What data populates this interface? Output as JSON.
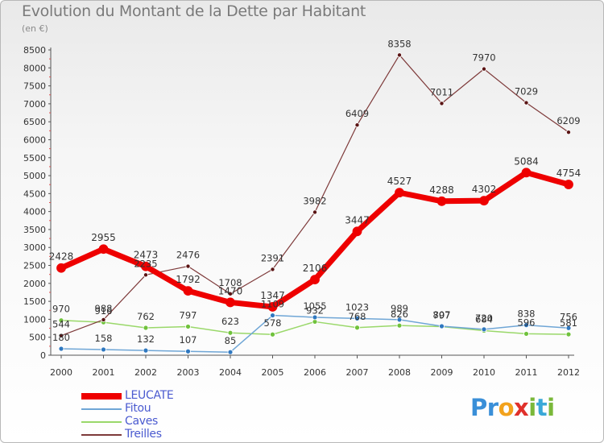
{
  "title": "Evolution du Montant de la Dette par Habitant",
  "subtitle": "(en €)",
  "logo": {
    "letters": [
      "P",
      "r",
      "o",
      "x",
      "i",
      "t",
      "i"
    ],
    "colors": [
      "#3a8fd8",
      "#3a8fd8",
      "#f2a21c",
      "#e0302b",
      "#7ab83a",
      "#3aa8d8",
      "#7ab83a"
    ]
  },
  "chart_data": {
    "type": "line",
    "x": [
      "2000",
      "2001",
      "2002",
      "2003",
      "2004",
      "2005",
      "2006",
      "2007",
      "2008",
      "2009",
      "2010",
      "2011",
      "2012"
    ],
    "ylim": [
      0,
      8500
    ],
    "yticks": [
      0,
      500,
      1000,
      1500,
      2000,
      2500,
      3000,
      3500,
      4000,
      4500,
      5000,
      5500,
      6000,
      6500,
      7000,
      7500,
      8000,
      8500
    ],
    "grid": false,
    "legend_position": "bottom-left",
    "series": [
      {
        "name": "LEUCATE",
        "color": "#ee0000",
        "values": [
          2428,
          2955,
          2473,
          1792,
          1470,
          1347,
          2106,
          3447,
          4527,
          4288,
          4302,
          5084,
          4754
        ],
        "labels": [
          "2428",
          "2955",
          "2473",
          "1792",
          "1470",
          "1347",
          "2106",
          "3447",
          "4527",
          "4288",
          "4302",
          "5084",
          "4754"
        ]
      },
      {
        "name": "Fitou",
        "color": "#6fa6d6",
        "values": [
          180,
          158,
          132,
          107,
          85,
          1109,
          1055,
          1023,
          989,
          807,
          720,
          838,
          756
        ],
        "labels": [
          "180",
          "158",
          "132",
          "107",
          "85",
          "1109",
          "1055",
          "1023",
          "989",
          "807",
          "720",
          "838",
          "756"
        ]
      },
      {
        "name": "Caves",
        "color": "#9ad86a",
        "values": [
          970,
          916,
          762,
          797,
          623,
          578,
          932,
          768,
          826,
          797,
          684,
          596,
          581
        ],
        "labels": [
          "970",
          "916",
          "762",
          "797",
          "623",
          "578",
          "932",
          "768",
          "826",
          "797",
          "684",
          "596",
          "581"
        ]
      },
      {
        "name": "Treilles",
        "color": "#7e3a3a",
        "values": [
          544,
          988,
          2235,
          2476,
          1708,
          2391,
          3982,
          6409,
          8358,
          7011,
          7970,
          7029,
          6209
        ],
        "labels": [
          "544",
          "988",
          "2235",
          "2476",
          "1708",
          "2391",
          "3982",
          "6409",
          "8358",
          "7011",
          "7970",
          "7029",
          "6209"
        ]
      }
    ]
  }
}
